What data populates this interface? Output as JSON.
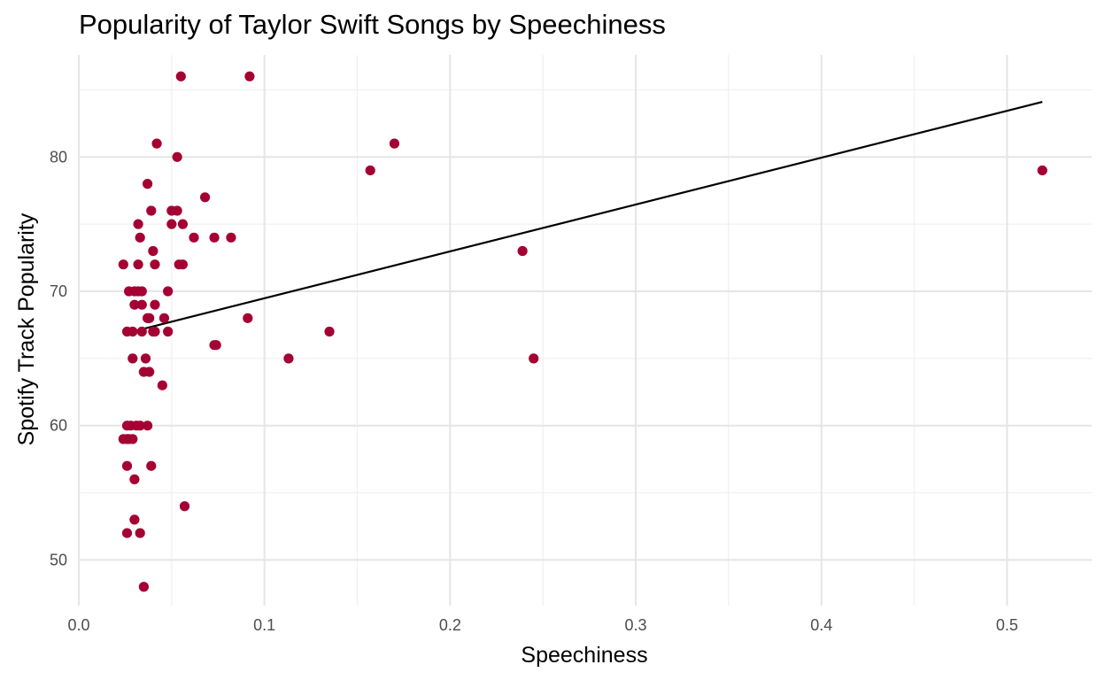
{
  "chart_data": {
    "type": "scatter",
    "title": "Popularity of Taylor Swift Songs by Speechiness",
    "xlabel": "Speechiness",
    "ylabel": "Spotify Track Popularity",
    "xlim": [
      0.0,
      0.5456
    ],
    "ylim": [
      46.6,
      87.6
    ],
    "x_ticks": [
      0.0,
      0.1,
      0.2,
      0.3,
      0.4,
      0.5
    ],
    "x_tick_labels": [
      "0.0",
      "0.1",
      "0.2",
      "0.3",
      "0.4",
      "0.5"
    ],
    "y_ticks": [
      50,
      60,
      70,
      80
    ],
    "y_tick_labels": [
      "50",
      "60",
      "70",
      "80"
    ],
    "grid": true,
    "point_color": "#a50034",
    "line_color": "#000000",
    "points": [
      {
        "x": 0.055,
        "y": 86
      },
      {
        "x": 0.092,
        "y": 86
      },
      {
        "x": 0.042,
        "y": 81
      },
      {
        "x": 0.17,
        "y": 81
      },
      {
        "x": 0.053,
        "y": 80
      },
      {
        "x": 0.157,
        "y": 79
      },
      {
        "x": 0.519,
        "y": 79
      },
      {
        "x": 0.037,
        "y": 78
      },
      {
        "x": 0.068,
        "y": 77
      },
      {
        "x": 0.039,
        "y": 76
      },
      {
        "x": 0.05,
        "y": 76
      },
      {
        "x": 0.053,
        "y": 76
      },
      {
        "x": 0.032,
        "y": 75
      },
      {
        "x": 0.05,
        "y": 75
      },
      {
        "x": 0.056,
        "y": 75
      },
      {
        "x": 0.033,
        "y": 74
      },
      {
        "x": 0.062,
        "y": 74
      },
      {
        "x": 0.073,
        "y": 74
      },
      {
        "x": 0.082,
        "y": 74
      },
      {
        "x": 0.04,
        "y": 73
      },
      {
        "x": 0.239,
        "y": 73
      },
      {
        "x": 0.024,
        "y": 72
      },
      {
        "x": 0.032,
        "y": 72
      },
      {
        "x": 0.041,
        "y": 72
      },
      {
        "x": 0.054,
        "y": 72
      },
      {
        "x": 0.056,
        "y": 72
      },
      {
        "x": 0.027,
        "y": 70
      },
      {
        "x": 0.03,
        "y": 70
      },
      {
        "x": 0.032,
        "y": 70
      },
      {
        "x": 0.034,
        "y": 70
      },
      {
        "x": 0.048,
        "y": 70
      },
      {
        "x": 0.03,
        "y": 69
      },
      {
        "x": 0.034,
        "y": 69
      },
      {
        "x": 0.041,
        "y": 69
      },
      {
        "x": 0.037,
        "y": 68
      },
      {
        "x": 0.038,
        "y": 68
      },
      {
        "x": 0.046,
        "y": 68
      },
      {
        "x": 0.091,
        "y": 68
      },
      {
        "x": 0.026,
        "y": 67
      },
      {
        "x": 0.029,
        "y": 67
      },
      {
        "x": 0.034,
        "y": 67
      },
      {
        "x": 0.04,
        "y": 67
      },
      {
        "x": 0.041,
        "y": 67
      },
      {
        "x": 0.048,
        "y": 67
      },
      {
        "x": 0.135,
        "y": 67
      },
      {
        "x": 0.073,
        "y": 66
      },
      {
        "x": 0.074,
        "y": 66
      },
      {
        "x": 0.029,
        "y": 65
      },
      {
        "x": 0.036,
        "y": 65
      },
      {
        "x": 0.113,
        "y": 65
      },
      {
        "x": 0.245,
        "y": 65
      },
      {
        "x": 0.035,
        "y": 64
      },
      {
        "x": 0.038,
        "y": 64
      },
      {
        "x": 0.045,
        "y": 63
      },
      {
        "x": 0.026,
        "y": 60
      },
      {
        "x": 0.028,
        "y": 60
      },
      {
        "x": 0.031,
        "y": 60
      },
      {
        "x": 0.033,
        "y": 60
      },
      {
        "x": 0.037,
        "y": 60
      },
      {
        "x": 0.024,
        "y": 59
      },
      {
        "x": 0.026,
        "y": 59
      },
      {
        "x": 0.027,
        "y": 59
      },
      {
        "x": 0.029,
        "y": 59
      },
      {
        "x": 0.026,
        "y": 57
      },
      {
        "x": 0.039,
        "y": 57
      },
      {
        "x": 0.03,
        "y": 56
      },
      {
        "x": 0.057,
        "y": 54
      },
      {
        "x": 0.03,
        "y": 53
      },
      {
        "x": 0.026,
        "y": 52
      },
      {
        "x": 0.033,
        "y": 52
      },
      {
        "x": 0.035,
        "y": 48
      }
    ],
    "trend_line": {
      "type": "linear",
      "x": [
        0.026,
        0.519
      ],
      "y": [
        66.9,
        84.1
      ]
    }
  }
}
